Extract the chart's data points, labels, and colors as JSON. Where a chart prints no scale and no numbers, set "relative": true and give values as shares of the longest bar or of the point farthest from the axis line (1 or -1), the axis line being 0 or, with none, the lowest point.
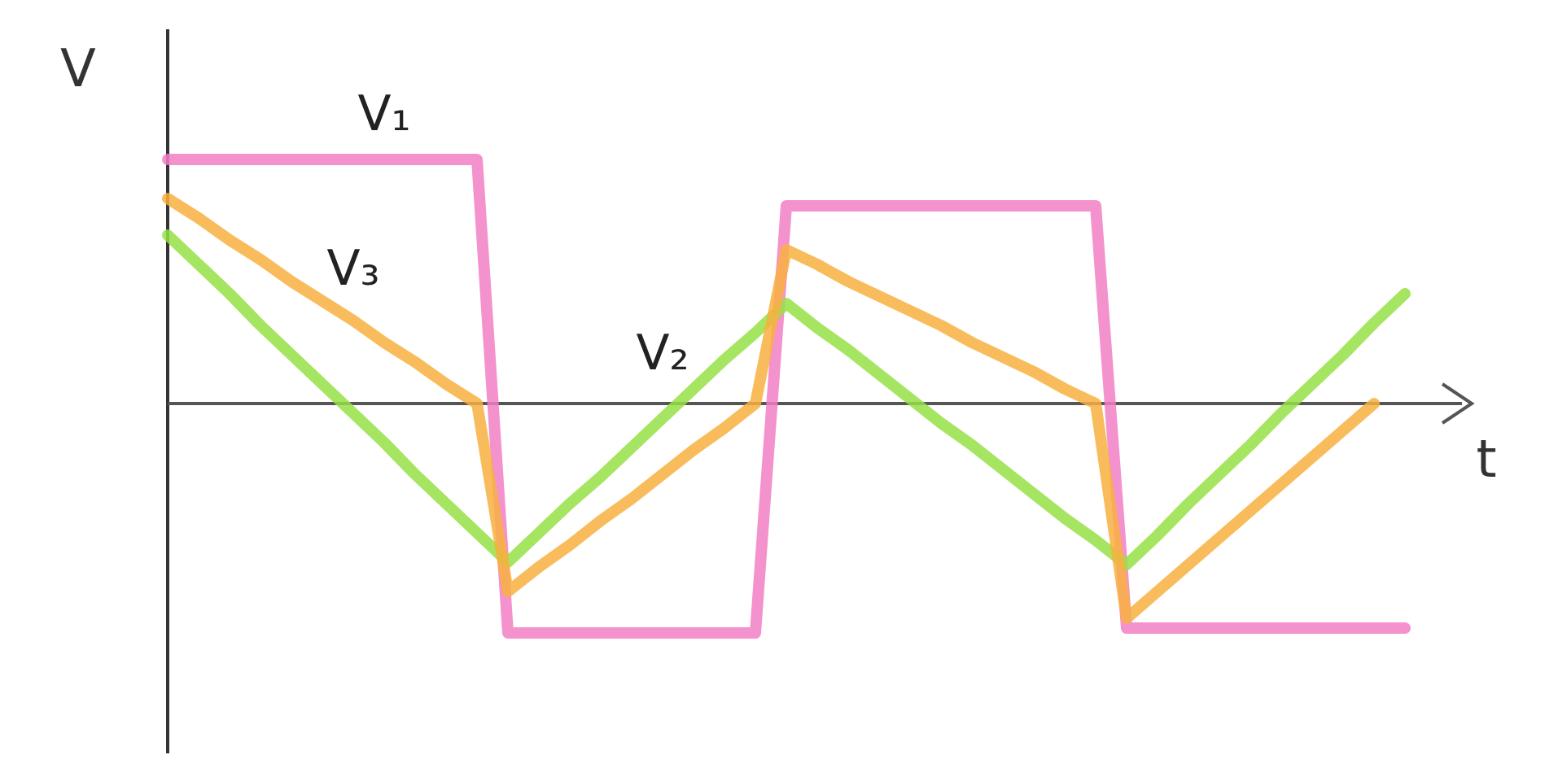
{
  "chart_data": {
    "type": "line",
    "relative": true,
    "xlabel": "t",
    "ylabel": "V",
    "categories": [
      null,
      null,
      null,
      null,
      null,
      null,
      null,
      null,
      null,
      null,
      null,
      null,
      null,
      null,
      null,
      null,
      null,
      null,
      null,
      null,
      null,
      null,
      null,
      null,
      null,
      null,
      null,
      null,
      null,
      null,
      null,
      null,
      null,
      null,
      null,
      null,
      null,
      null,
      null,
      null,
      null
    ],
    "series": [
      {
        "name": "V₁",
        "color": "#f27fc4",
        "values": [
          1,
          1,
          1,
          1,
          1,
          1,
          1,
          1,
          1,
          1,
          1,
          -0.94,
          -0.94,
          -0.94,
          -0.94,
          -0.94,
          -0.94,
          -0.94,
          -0.94,
          -0.94,
          0.81,
          0.81,
          0.81,
          0.81,
          0.81,
          0.81,
          0.81,
          0.81,
          0.81,
          0.81,
          0.81,
          -0.92,
          -0.92,
          -0.92,
          -0.92,
          -0.92,
          -0.92,
          -0.92,
          -0.92,
          -0.92,
          -0.92
        ]
      },
      {
        "name": "V₂",
        "color": "#96e046",
        "values": [
          0.69,
          0.57,
          0.45,
          0.32,
          0.2,
          0.08,
          -0.04,
          -0.16,
          -0.29,
          -0.41,
          -0.53,
          -0.65,
          -0.53,
          -0.41,
          -0.3,
          -0.18,
          -0.06,
          0.06,
          0.18,
          0.29,
          0.41,
          0.31,
          0.22,
          0.12,
          0.02,
          -0.08,
          -0.17,
          -0.27,
          -0.37,
          -0.47,
          -0.56,
          -0.66,
          -0.54,
          -0.41,
          -0.29,
          -0.17,
          -0.04,
          0.08,
          0.2,
          0.33,
          0.45
        ]
      },
      {
        "name": "V₃",
        "color": "#f8b040",
        "values": [
          0.84,
          0.76,
          0.67,
          0.59,
          0.5,
          0.42,
          0.34,
          0.25,
          0.17,
          0.08,
          0,
          -0.77,
          -0.67,
          -0.58,
          -0.48,
          -0.39,
          -0.29,
          -0.19,
          -0.1,
          0,
          0.63,
          0.57,
          0.5,
          0.44,
          0.38,
          0.32,
          0.25,
          0.19,
          0.13,
          0.06,
          0,
          -0.88,
          -0.77,
          -0.66,
          -0.55,
          -0.44,
          -0.33,
          -0.22,
          -0.11,
          0,
          null
        ]
      }
    ]
  }
}
